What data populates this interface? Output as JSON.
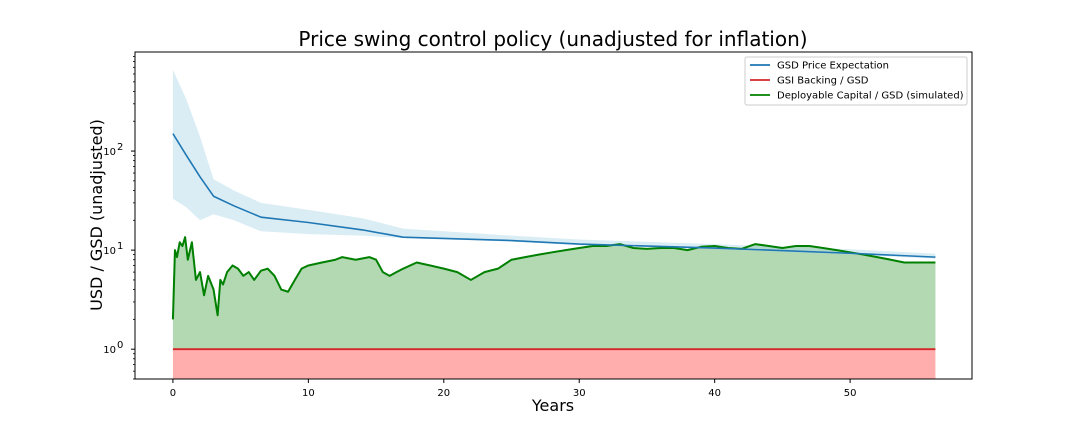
{
  "chart_data": {
    "type": "line",
    "title": "Price swing control policy (unadjusted for inflation)",
    "xlabel": "Years",
    "ylabel": "USD / GSD (unadjusted)",
    "xlim": [
      -2.8,
      59
    ],
    "ylim": [
      0.5,
      1000
    ],
    "yscale": "log",
    "xticks": [
      0,
      10,
      20,
      30,
      40,
      50
    ],
    "yticks": [
      {
        "value": 1,
        "base": "10",
        "exp": "0"
      },
      {
        "value": 10,
        "base": "10",
        "exp": "1"
      },
      {
        "value": 100,
        "base": "10",
        "exp": "2"
      }
    ],
    "grid": false,
    "legend_position": "top-right",
    "series": [
      {
        "name": "GSD Price Expectation",
        "color": "#1f77b4",
        "band_color": "#add8e6",
        "x": [
          0,
          1,
          2,
          3,
          4.5,
          6.5,
          10,
          14,
          17,
          25,
          30,
          40,
          50,
          56.3
        ],
        "y": [
          150,
          90,
          55,
          35,
          28,
          21.5,
          19,
          16,
          13.5,
          12.5,
          11.5,
          10.5,
          9.3,
          8.5
        ],
        "lower": [
          33,
          27,
          20,
          23,
          20,
          15.5,
          14.5,
          14,
          13.2,
          12.2,
          11.2,
          10.2,
          9.0,
          8.2
        ],
        "upper": [
          660,
          330,
          140,
          52,
          40,
          30,
          25.5,
          21,
          16.5,
          14,
          12.8,
          11.5,
          10.2,
          9.2
        ]
      },
      {
        "name": "GSI Backing / GSD",
        "color": "#d62728",
        "fill_color": "#ff9999",
        "x": [
          0,
          56.3
        ],
        "y": [
          1,
          1
        ]
      },
      {
        "name": "Deployable Capital / GSD (simulated)",
        "color": "#008000",
        "fill_color": "#98cc98",
        "x": [
          0,
          0.15,
          0.3,
          0.5,
          0.7,
          0.9,
          1.1,
          1.4,
          1.7,
          2.0,
          2.3,
          2.6,
          3.0,
          3.3,
          3.5,
          3.7,
          4.0,
          4.4,
          4.8,
          5.2,
          5.6,
          6.0,
          6.5,
          7.0,
          7.5,
          8.0,
          8.5,
          9.0,
          9.5,
          10.0,
          11.0,
          12.0,
          12.5,
          13.5,
          14.5,
          15.0,
          15.5,
          16.0,
          16.5,
          17.0,
          18.0,
          19.0,
          20.0,
          21.0,
          22.0,
          23.0,
          24.0,
          25.0,
          26.0,
          27.0,
          28.0,
          29.0,
          30.0,
          31.0,
          32.0,
          33.0,
          34.0,
          35.0,
          36.0,
          37.0,
          38.0,
          39.0,
          40.0,
          41.0,
          42.0,
          43.0,
          44.0,
          45.0,
          46.0,
          47.0,
          48.0,
          49.0,
          50.0,
          51.0,
          52.0,
          53.0,
          54.0,
          55.0,
          56.3
        ],
        "y": [
          2,
          10,
          8.5,
          12,
          11,
          13.5,
          8,
          12,
          5,
          6,
          3.5,
          5.5,
          4,
          2.2,
          5,
          4.5,
          6,
          7,
          6.5,
          5.5,
          6,
          5,
          6.2,
          6.5,
          5.5,
          4,
          3.8,
          5,
          6.5,
          7,
          7.5,
          8,
          8.5,
          8,
          8.5,
          8,
          6,
          5.5,
          6,
          6.5,
          7.5,
          7,
          6.5,
          6,
          5,
          6,
          6.5,
          8,
          8.5,
          9,
          9.5,
          10,
          10.5,
          11,
          11,
          11.5,
          10.5,
          10.3,
          10.5,
          10.5,
          10,
          10.8,
          11,
          10.5,
          10.3,
          11.5,
          11,
          10.5,
          11,
          11,
          10.5,
          10,
          9.5,
          9,
          8.5,
          8,
          7.5,
          7.5,
          7.5
        ]
      }
    ]
  }
}
